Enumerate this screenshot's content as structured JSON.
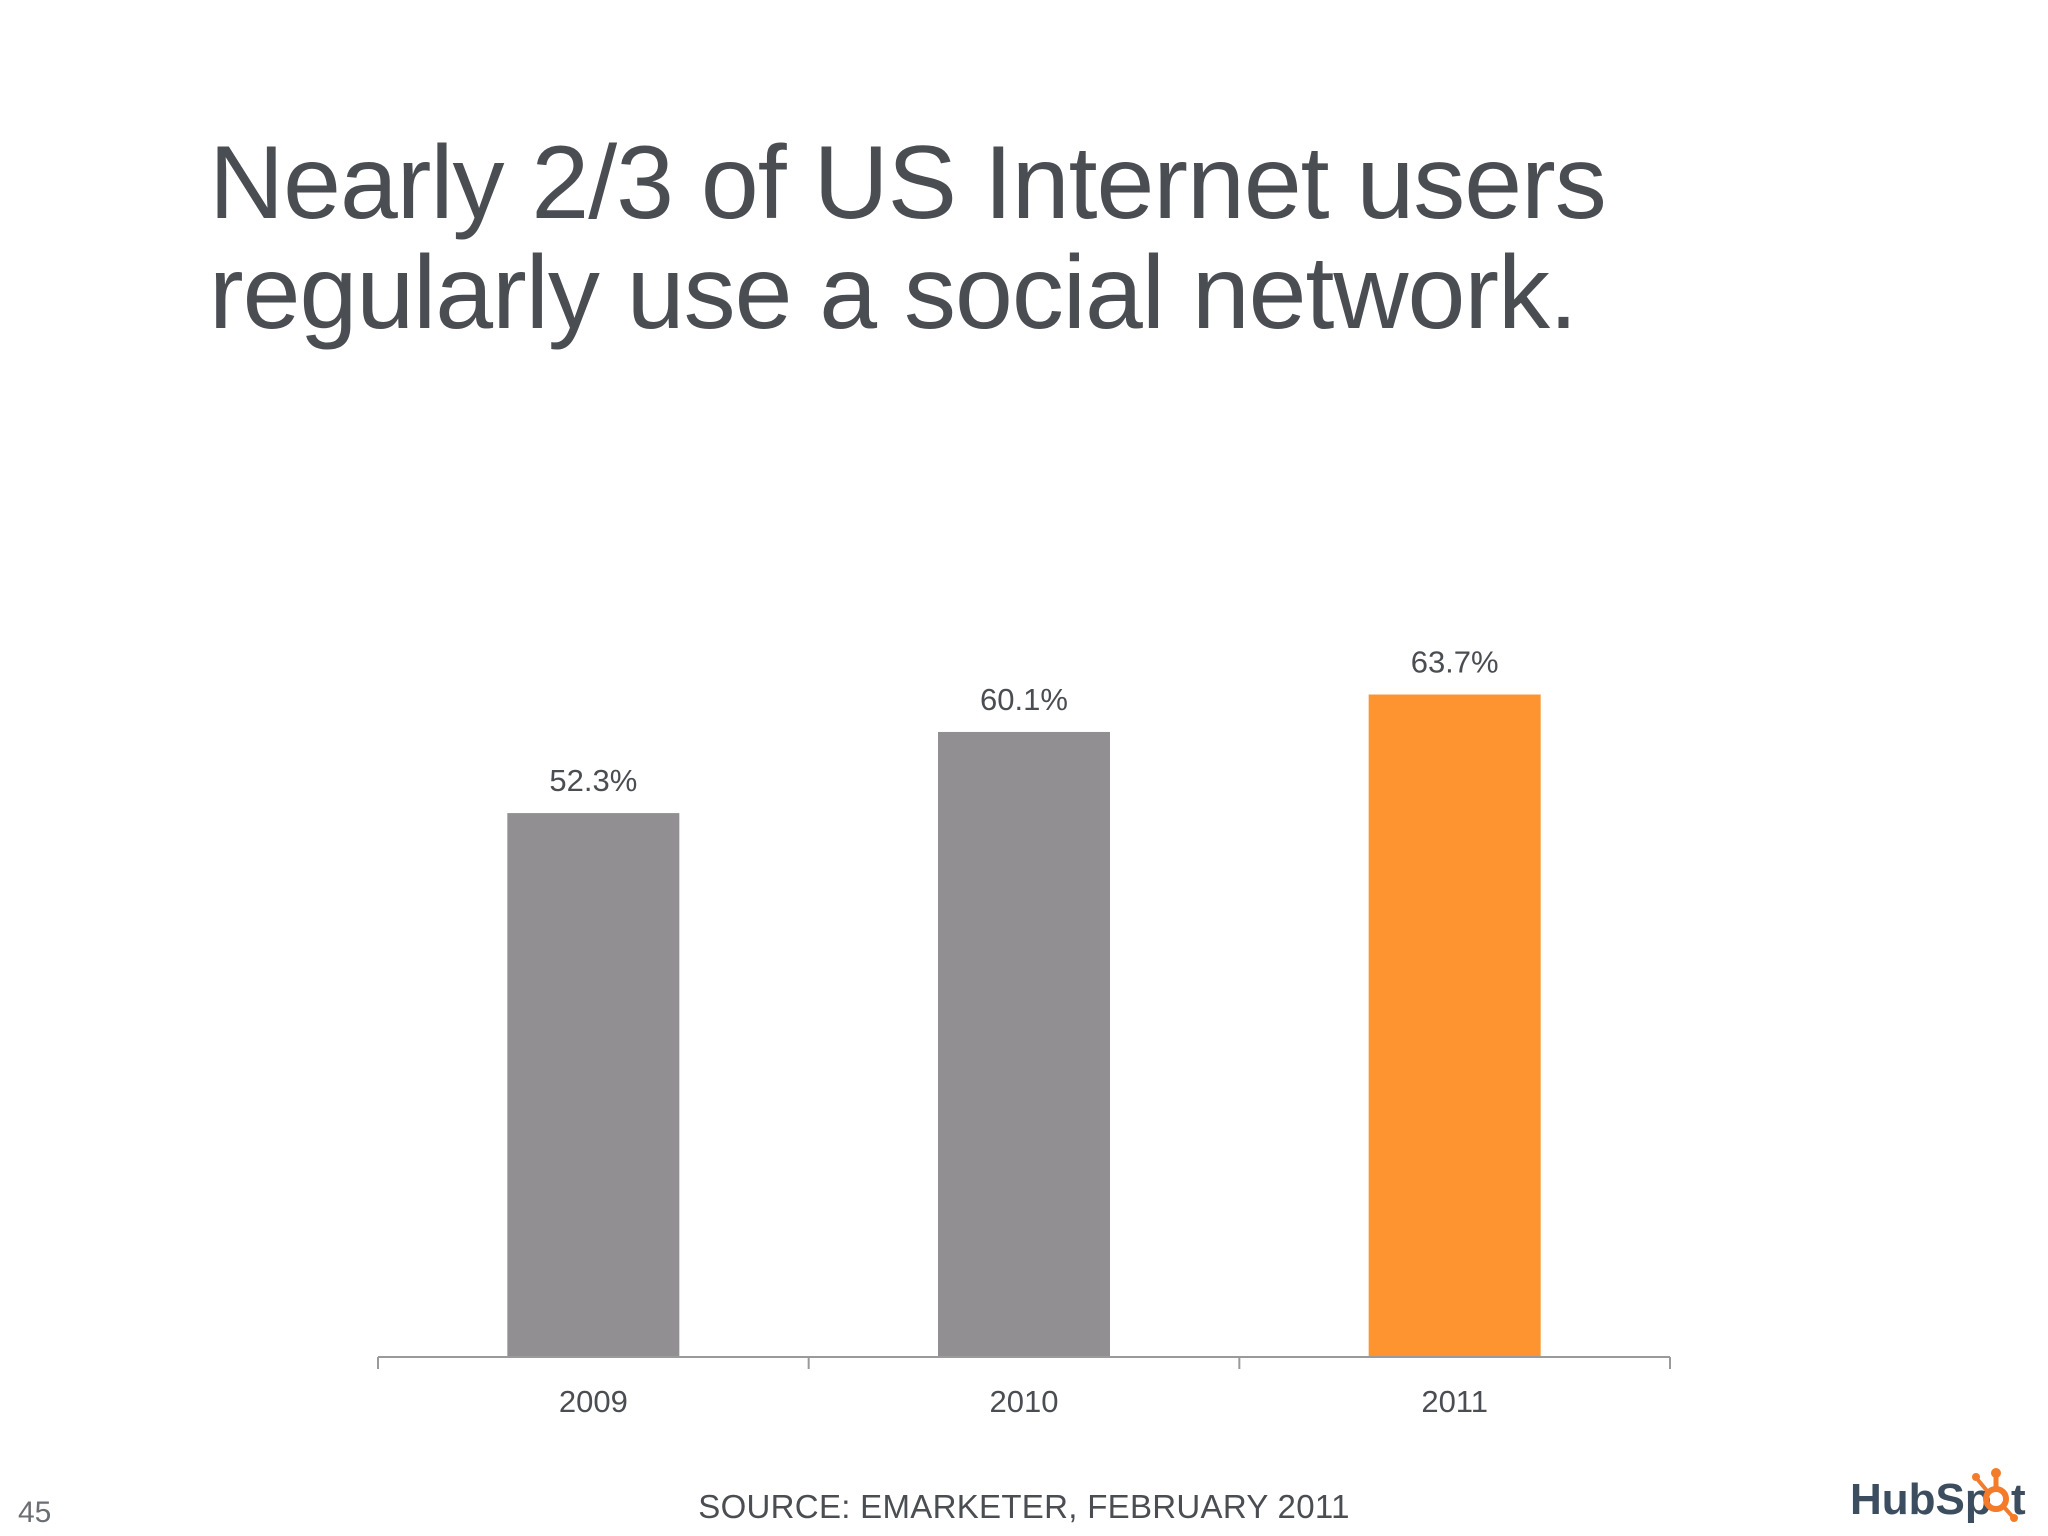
{
  "slide": {
    "title_line1": "Nearly 2/3 of US Internet users",
    "title_line2": "regularly use a social network.",
    "number": "45",
    "source": "SOURCE: EMARKETER, FEBRUARY 2011",
    "logo_text_left": "HubSp",
    "logo_text_right": "t",
    "logo_icon": "sprocket-icon"
  },
  "colors": {
    "bar_default": "#918f92",
    "bar_highlight": "#fd9430",
    "axis": "#9a9a9a",
    "text": "#4a4d52",
    "logo_text": "#3b4d5e",
    "logo_accent": "#f47b2a"
  },
  "chart_data": {
    "type": "bar",
    "categories": [
      "2009",
      "2010",
      "2011"
    ],
    "values": [
      52.3,
      60.1,
      63.7
    ],
    "value_labels": [
      "52.3%",
      "60.1%",
      "63.7%"
    ],
    "highlight_index": 2,
    "ylim": [
      0,
      70
    ],
    "grid": false,
    "legend": "none"
  }
}
